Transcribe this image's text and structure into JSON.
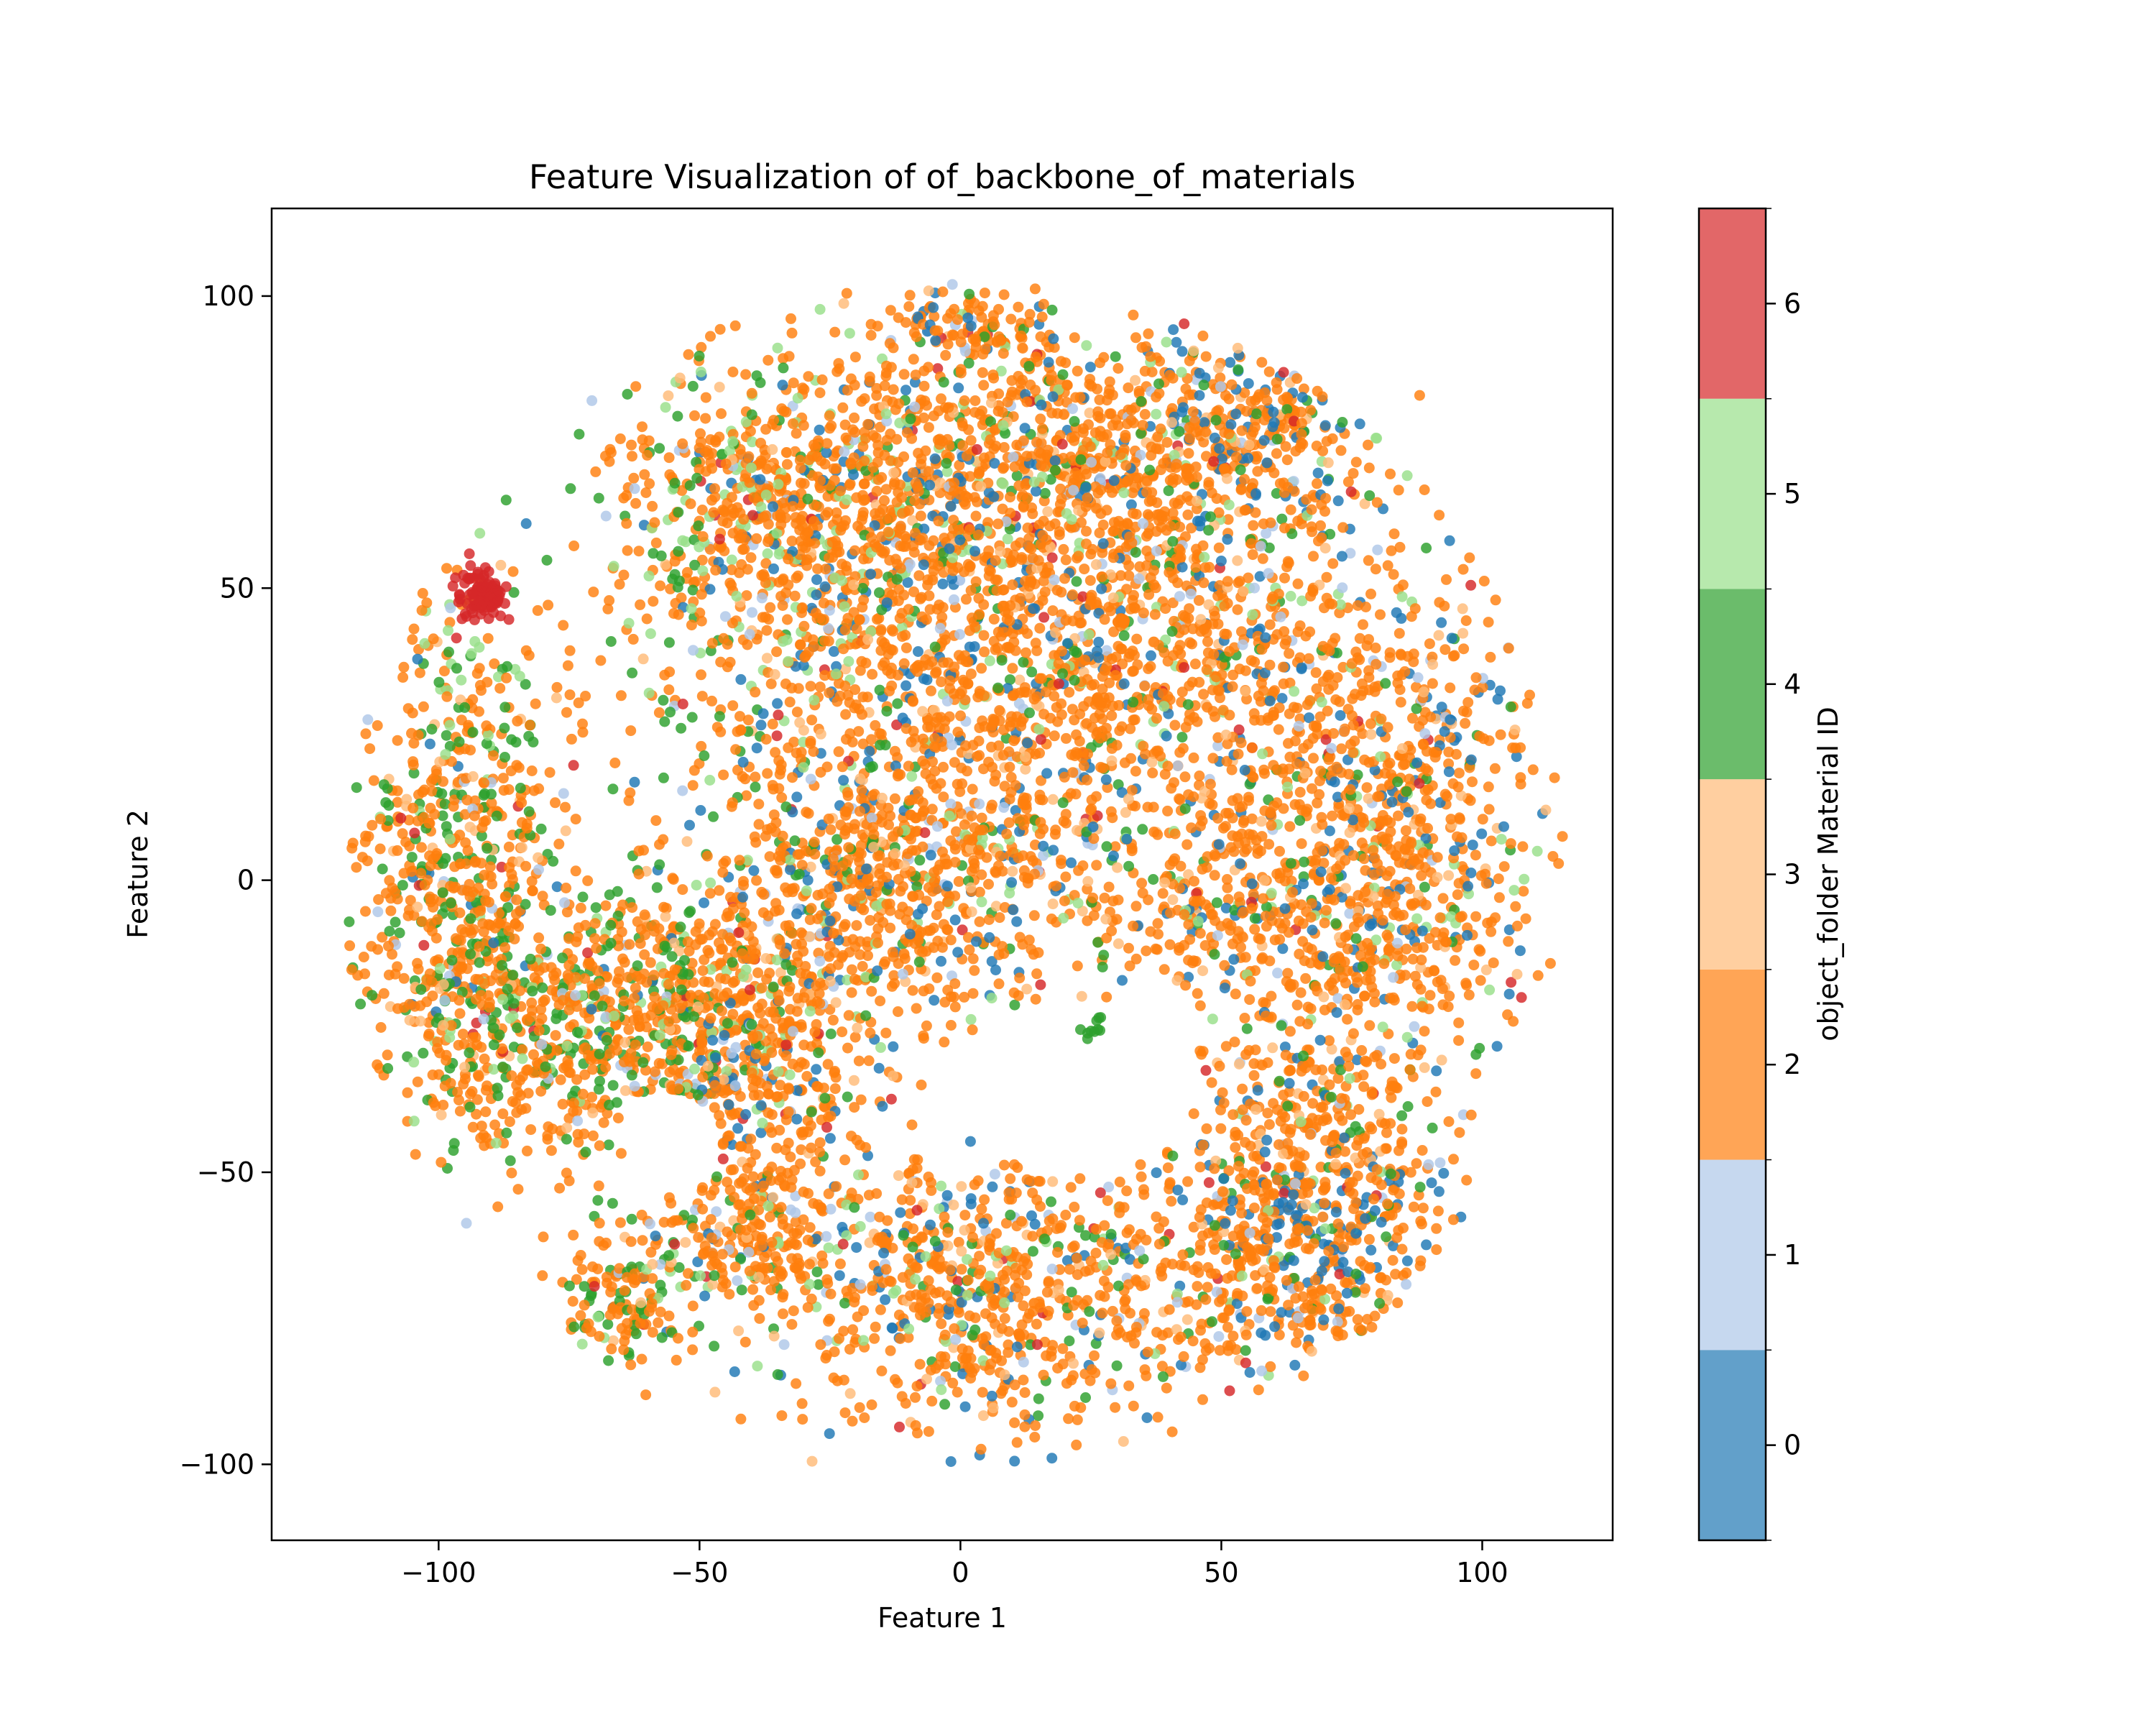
{
  "chart_data": {
    "type": "scatter",
    "title": "Feature Visualization of of_backbone_of_materials",
    "xlabel": "Feature 1",
    "ylabel": "Feature 2",
    "xlim": [
      -132,
      125
    ],
    "ylim": [
      -113,
      115
    ],
    "x_ticks": [
      -100,
      -50,
      0,
      50,
      100
    ],
    "y_ticks": [
      -100,
      -50,
      0,
      50,
      100
    ],
    "x_tick_labels": [
      "−100",
      "−50",
      "0",
      "50",
      "100"
    ],
    "y_tick_labels": [
      "−100",
      "−50",
      "0",
      "50",
      "100"
    ],
    "grid": false,
    "legend": "none",
    "point_counts_approx": {
      "0": 2400,
      "1": 700,
      "2": 14000,
      "3": 1100,
      "4": 2300,
      "5": 900,
      "6": 350
    },
    "distribution_note": "t-SNE embedding; points fill a roughly circular cloud (x -120..115, y -103..104) with a hole near (25, -35); class 2 dominates, class 4 concentrated on left lobe (x<-50), class 0 concentrated bottom-right (x 60..90, y -60..-85) and top-right, class 6 cluster near (-91, 50)",
    "colorbar": {
      "label": "object_folder Material ID",
      "range": [
        -0.5,
        6.5
      ],
      "ticks": [
        0,
        1,
        2,
        3,
        4,
        5,
        6
      ],
      "tick_labels": [
        "0",
        "1",
        "2",
        "3",
        "4",
        "5",
        "6"
      ],
      "colors": [
        "#1f77b4",
        "#aec7e8",
        "#ff7f0e",
        "#ffbb78",
        "#2ca02c",
        "#98df8a",
        "#d62728"
      ],
      "alpha": 0.7
    }
  }
}
